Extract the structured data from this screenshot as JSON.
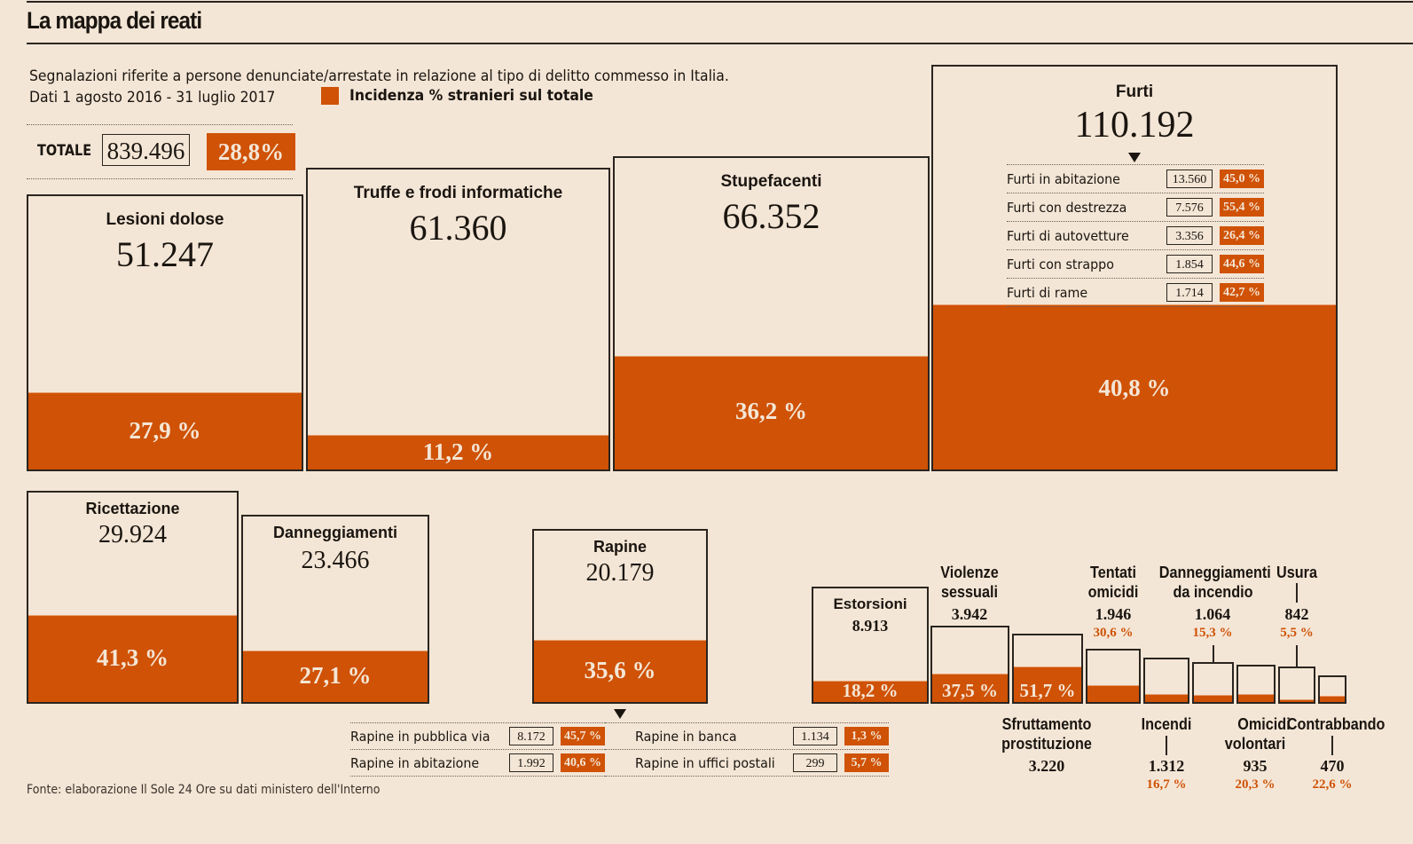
{
  "title": "La mappa dei reati",
  "subtitle_line1": "Segnalazioni riferite a persone denunciate/arrestate in relazione al tipo di delitto commesso in Italia.",
  "subtitle_line2": "Dati 1 agosto 2016 - 31 luglio 2017",
  "legend_label": "Incidenza % stranieri sul totale",
  "colors": {
    "accent": "#cf5206",
    "background": "#f4e6d6",
    "ink": "#1a1510"
  },
  "totale": {
    "label": "TOTALE",
    "value": "839.496",
    "pct": "28,8%"
  },
  "source": "Fonte: elaborazione Il Sole 24 Ore su dati ministero dell'Interno",
  "chart_data": {
    "type": "treemap-bar",
    "title": "La mappa dei reati",
    "unit": "segnalazioni",
    "share_label": "Incidenza % stranieri sul totale",
    "categories": [
      {
        "key": "lesioni",
        "name": "Lesioni dolose",
        "value": 51247,
        "value_label": "51.247",
        "pct": 27.9,
        "pct_label": "27,9 %"
      },
      {
        "key": "truffe",
        "name": "Truffe e frodi informatiche",
        "value": 61360,
        "value_label": "61.360",
        "pct": 11.2,
        "pct_label": "11,2 %"
      },
      {
        "key": "stupefacenti",
        "name": "Stupefacenti",
        "value": 66352,
        "value_label": "66.352",
        "pct": 36.2,
        "pct_label": "36,2 %"
      },
      {
        "key": "furti",
        "name": "Furti",
        "value": 110192,
        "value_label": "110.192",
        "pct": 40.8,
        "pct_label": "40,8 %"
      },
      {
        "key": "ricettazione",
        "name": "Ricettazione",
        "value": 29924,
        "value_label": "29.924",
        "pct": 41.3,
        "pct_label": "41,3 %"
      },
      {
        "key": "danneggiamenti",
        "name": "Danneggiamenti",
        "value": 23466,
        "value_label": "23.466",
        "pct": 27.1,
        "pct_label": "27,1 %"
      },
      {
        "key": "rapine",
        "name": "Rapine",
        "value": 20179,
        "value_label": "20.179",
        "pct": 35.6,
        "pct_label": "35,6 %"
      },
      {
        "key": "estorsioni",
        "name": "Estorsioni",
        "value": 8913,
        "value_label": "8.913",
        "pct": 18.2,
        "pct_label": "18,2 %"
      },
      {
        "key": "violenze",
        "name": "Violenze sessuali",
        "value": 3942,
        "value_label": "3.942",
        "pct": 37.5,
        "pct_label": "37,5 %"
      },
      {
        "key": "sfruttamento",
        "name": "Sfruttamento prostituzione",
        "value": 3220,
        "value_label": "3.220",
        "pct": 51.7,
        "pct_label": "51,7 %"
      },
      {
        "key": "tentati",
        "name": "Tentati omicidi",
        "value": 1946,
        "value_label": "1.946",
        "pct": 30.6,
        "pct_label": "30,6 %"
      },
      {
        "key": "incendi",
        "name": "Incendi",
        "value": 1312,
        "value_label": "1.312",
        "pct": 16.7,
        "pct_label": "16,7 %"
      },
      {
        "key": "dann_incendio",
        "name": "Danneggiamenti da incendio",
        "value": 1064,
        "value_label": "1.064",
        "pct": 15.3,
        "pct_label": "15,3 %"
      },
      {
        "key": "omicidi",
        "name": "Omicidi volontari",
        "value": 935,
        "value_label": "935",
        "pct": 20.3,
        "pct_label": "20,3 %"
      },
      {
        "key": "usura",
        "name": "Usura",
        "value": 842,
        "value_label": "842",
        "pct": 5.5,
        "pct_label": "5,5 %"
      },
      {
        "key": "contrabbando",
        "name": "Contrabbando",
        "value": 470,
        "value_label": "470",
        "pct": 22.6,
        "pct_label": "22,6 %"
      }
    ],
    "breakdowns": {
      "furti": [
        {
          "name": "Furti in abitazione",
          "value": "13.560",
          "pct": "45,0 %"
        },
        {
          "name": "Furti con destrezza",
          "value": "7.576",
          "pct": "55,4 %"
        },
        {
          "name": "Furti di autovetture",
          "value": "3.356",
          "pct": "26,4 %"
        },
        {
          "name": "Furti con strappo",
          "value": "1.854",
          "pct": "44,6 %"
        },
        {
          "name": "Furti di rame",
          "value": "1.714",
          "pct": "42,7 %"
        }
      ],
      "rapine_left": [
        {
          "name": "Rapine in pubblica via",
          "value": "8.172",
          "pct": "45,7 %"
        },
        {
          "name": "Rapine in abitazione",
          "value": "1.992",
          "pct": "40,6 %"
        }
      ],
      "rapine_right": [
        {
          "name": "Rapine in banca",
          "value": "1.134",
          "pct": "1,3 %"
        },
        {
          "name": "Rapine in uffici postali",
          "value": "299",
          "pct": "5,7 %"
        }
      ]
    },
    "ext_labels": {
      "violenze_l1": "Violenze",
      "violenze_l2": "sessuali",
      "sfruttamento_l1": "Sfruttamento",
      "sfruttamento_l2": "prostituzione",
      "tentati_l1": "Tentati",
      "tentati_l2": "omicidi",
      "dann_incendio_l1": "Danneggiamenti",
      "dann_incendio_l2": "da incendio",
      "omicidi_l1": "Omicidi",
      "omicidi_l2": "volontari"
    }
  }
}
